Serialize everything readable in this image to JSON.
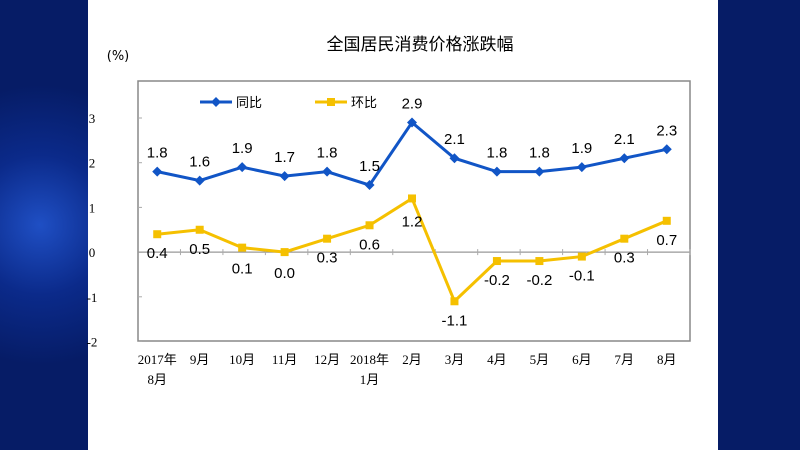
{
  "chart_data": {
    "type": "line",
    "title": "全国居民消费价格涨跌幅",
    "ylabel": "(%)",
    "ylim": [
      -2,
      3
    ],
    "yticks": [
      "3",
      "2",
      "1",
      "0",
      "-1",
      "-2"
    ],
    "categories": [
      [
        "2017年",
        "8月"
      ],
      [
        "9月"
      ],
      [
        "10月"
      ],
      [
        "11月"
      ],
      [
        "12月"
      ],
      [
        "2018年",
        "1月"
      ],
      [
        "2月"
      ],
      [
        "3月"
      ],
      [
        "4月"
      ],
      [
        "5月"
      ],
      [
        "6月"
      ],
      [
        "7月"
      ],
      [
        "8月"
      ]
    ],
    "legend_position": "top-left",
    "grid": false,
    "series": [
      {
        "name": "同比",
        "color": "#1155c6",
        "marker": "diamond",
        "values": [
          1.8,
          1.6,
          1.9,
          1.7,
          1.8,
          1.5,
          2.9,
          2.1,
          1.8,
          1.8,
          1.9,
          2.1,
          2.3
        ],
        "labels": [
          "1.8",
          "1.6",
          "1.9",
          "1.7",
          "1.8",
          "1.5",
          "2.9",
          "2.1",
          "1.8",
          "1.8",
          "1.9",
          "2.1",
          "2.3"
        ]
      },
      {
        "name": "环比",
        "color": "#f5c000",
        "marker": "square",
        "values": [
          0.4,
          0.5,
          0.1,
          0.0,
          0.3,
          0.6,
          1.2,
          -1.1,
          -0.2,
          -0.2,
          -0.1,
          0.3,
          0.7
        ],
        "labels": [
          "0.4",
          "0.5",
          "0.1",
          "0.0",
          "0.3",
          "0.6",
          "1.2",
          "-1.1",
          "-0.2",
          "-0.2",
          "-0.1",
          "0.3",
          "0.7"
        ]
      }
    ]
  }
}
